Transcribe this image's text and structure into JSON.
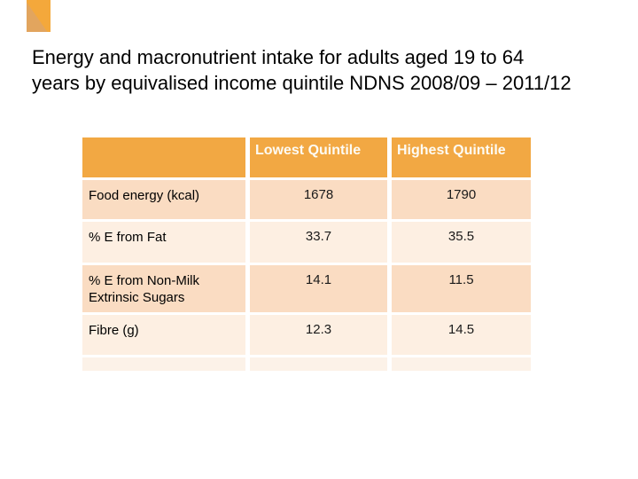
{
  "slide": {
    "title": {
      "line1": "Energy and macronutrient intake for adults aged 19 to 64",
      "line2": "years by equivalised income quintile NDNS 2008/09 – 2011/12"
    }
  },
  "table": {
    "headers": {
      "blank": "",
      "lowest": "Lowest Quintile",
      "highest": "Highest Quintile"
    },
    "rows": [
      {
        "label": "Food energy (kcal)",
        "lowest": "1678",
        "highest": "1790"
      },
      {
        "label": "% E from Fat",
        "lowest": "33.7",
        "highest": "35.5"
      },
      {
        "label": "% E from Non-Milk Extrinsic Sugars",
        "lowest": "14.1",
        "highest": "11.5"
      },
      {
        "label": "Fibre (g)",
        "lowest": "12.3",
        "highest": "14.5"
      }
    ]
  },
  "colors": {
    "header_bg": "#f2a843",
    "row_band_dark": "#fadcc2",
    "row_band_light": "#fdefe2",
    "row_band_pale": "#fcf2e8",
    "header_text": "#fdfbf4",
    "body_text": "#000000",
    "accent": "#f4a83b"
  }
}
